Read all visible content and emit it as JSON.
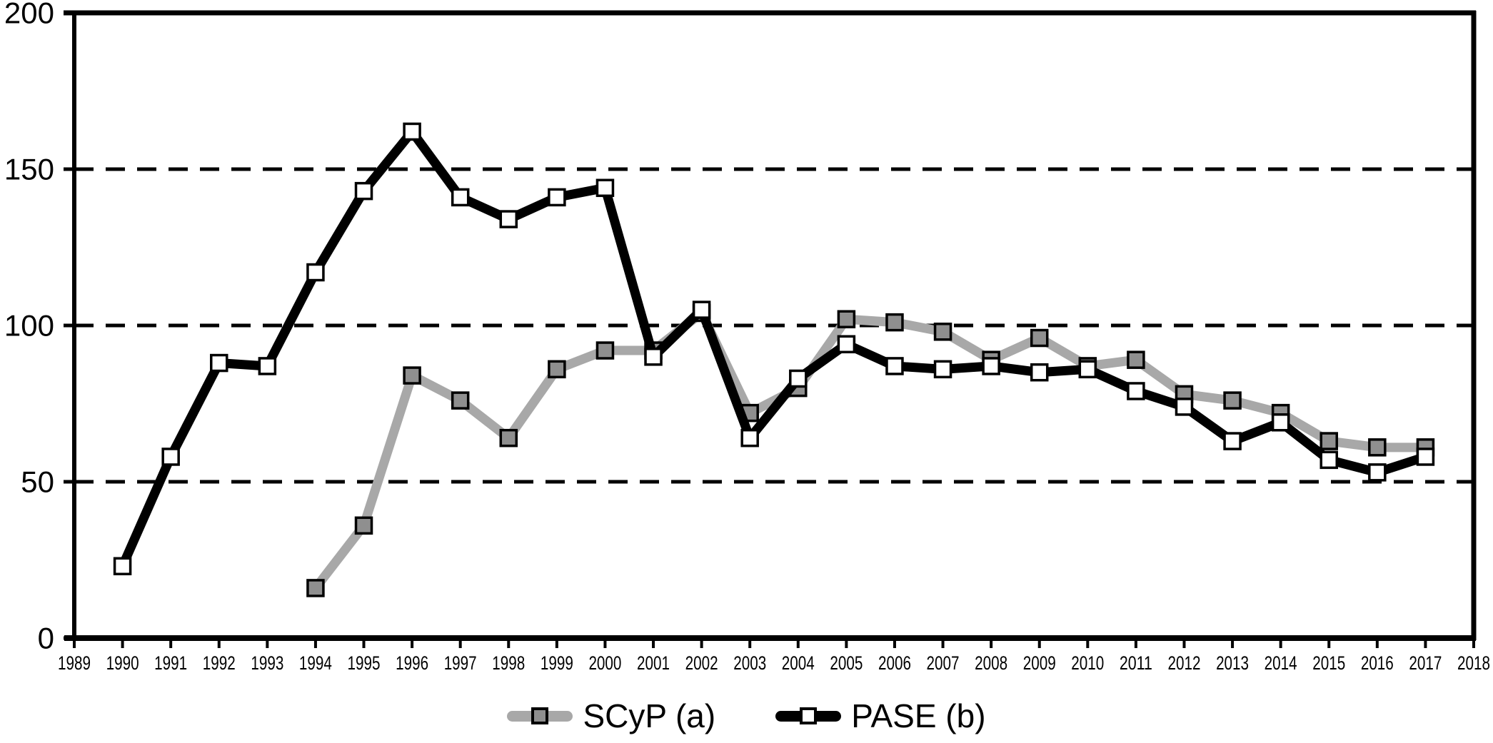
{
  "chart_data": {
    "type": "line",
    "title": "",
    "xlabel": "",
    "ylabel": "",
    "xlim": [
      1989,
      2018
    ],
    "ylim": [
      0,
      200
    ],
    "x_ticks": [
      1989,
      1990,
      1991,
      1992,
      1993,
      1994,
      1995,
      1996,
      1997,
      1998,
      1999,
      2000,
      2001,
      2002,
      2003,
      2004,
      2005,
      2006,
      2007,
      2008,
      2009,
      2010,
      2011,
      2012,
      2013,
      2014,
      2015,
      2016,
      2017,
      2018
    ],
    "y_ticks": [
      0,
      50,
      100,
      150,
      200
    ],
    "gridlines": {
      "dashed_y": [
        50,
        100,
        150
      ],
      "solid_top_y": 200
    },
    "grid": "horizontal-dashed",
    "legend_position": "bottom-center",
    "axis_color": "#000000",
    "series": [
      {
        "name": "SCyP (a)",
        "color": "#a8a8a8",
        "marker": "square",
        "marker_fill": "#8f8f8f",
        "marker_stroke": "#000000",
        "x": [
          1994,
          1995,
          1996,
          1997,
          1998,
          1999,
          2000,
          2001,
          2002,
          2003,
          2004,
          2005,
          2006,
          2007,
          2008,
          2009,
          2010,
          2011,
          2012,
          2013,
          2014,
          2015,
          2016,
          2017
        ],
        "values": [
          16,
          36,
          84,
          76,
          64,
          86,
          92,
          92,
          104,
          72,
          80,
          102,
          101,
          98,
          89,
          96,
          87,
          89,
          78,
          76,
          72,
          63,
          61,
          61
        ]
      },
      {
        "name": "PASE (b)",
        "color": "#000000",
        "marker": "square",
        "marker_fill": "#ffffff",
        "marker_stroke": "#000000",
        "x": [
          1990,
          1991,
          1992,
          1993,
          1994,
          1995,
          1996,
          1997,
          1998,
          1999,
          2000,
          2001,
          2002,
          2003,
          2004,
          2005,
          2006,
          2007,
          2008,
          2009,
          2010,
          2011,
          2012,
          2013,
          2014,
          2015,
          2016,
          2017
        ],
        "values": [
          23,
          58,
          88,
          87,
          117,
          143,
          162,
          141,
          134,
          141,
          144,
          90,
          105,
          64,
          83,
          94,
          87,
          86,
          87,
          85,
          86,
          79,
          74,
          63,
          69,
          57,
          53,
          58
        ]
      }
    ]
  }
}
